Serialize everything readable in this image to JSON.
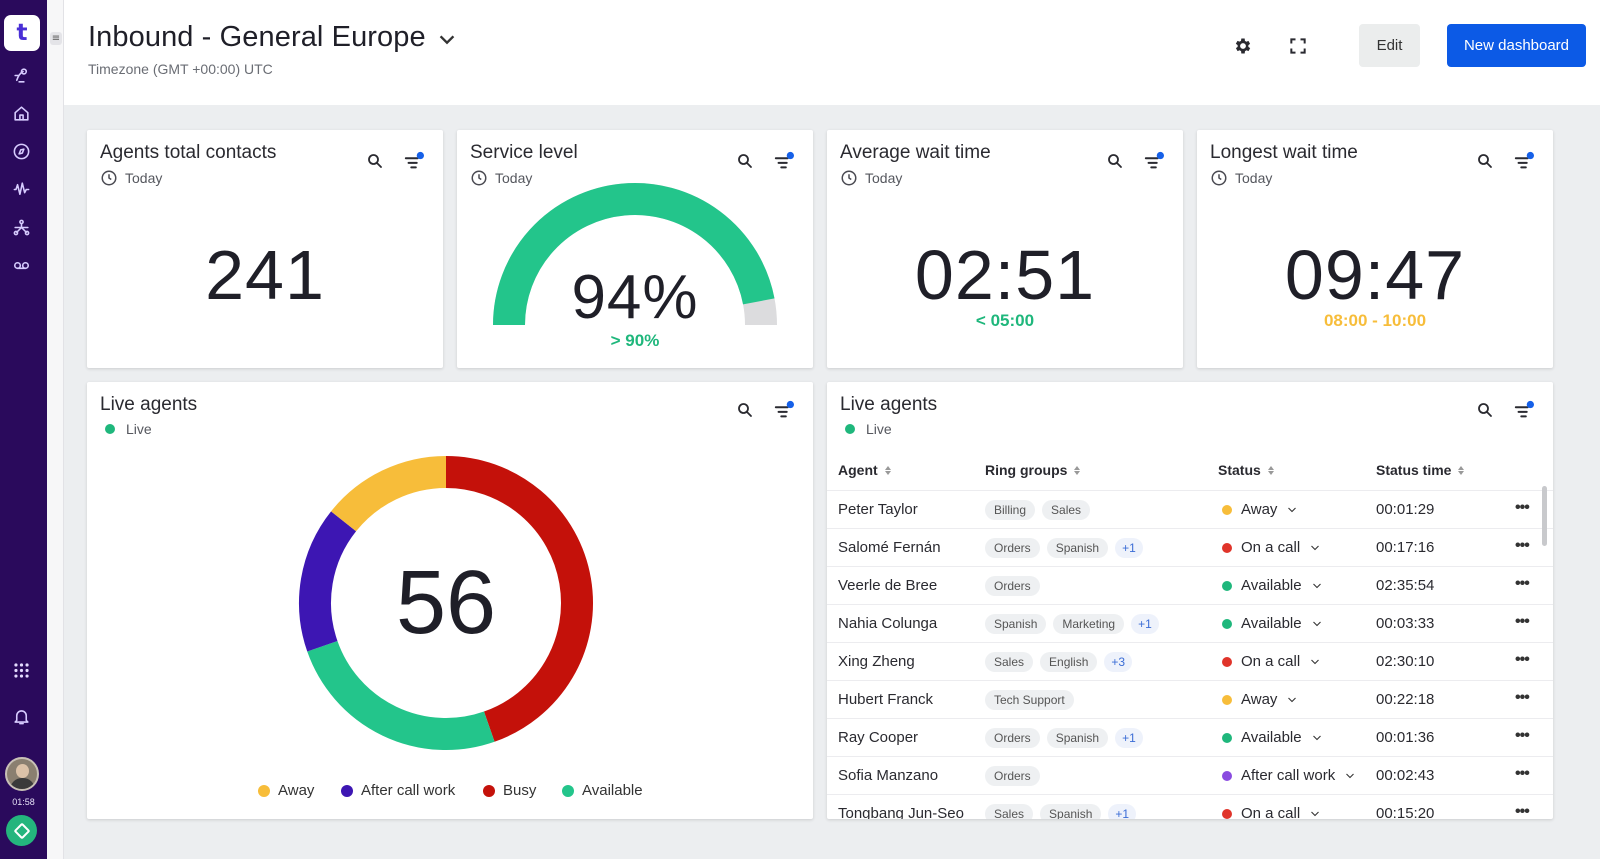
{
  "sidebar": {
    "logo": "t",
    "icons": [
      "bot-icon",
      "home-icon",
      "compass-icon",
      "waveform-icon",
      "network-icon",
      "voicemail-icon"
    ],
    "timer": "01:58"
  },
  "header": {
    "title": "Inbound - General Europe",
    "timezone": "Timezone (GMT +00:00) UTC",
    "edit_label": "Edit",
    "new_dashboard_label": "New dashboard",
    "accent_color": "#0c5ae6"
  },
  "widgets": {
    "total_contacts": {
      "title": "Agents total contacts",
      "period": "Today",
      "value": "241"
    },
    "service_level": {
      "title": "Service level",
      "period": "Today",
      "value": "94%",
      "target": "> 90%",
      "fill_fraction": 0.94,
      "color": "#23c58b"
    },
    "avg_wait": {
      "title": "Average wait time",
      "period": "Today",
      "value": "02:51",
      "target": "< 05:00",
      "target_color": "#1fb77c"
    },
    "longest_wait": {
      "title": "Longest wait time",
      "period": "Today",
      "value": "09:47",
      "target": "08:00 - 10:00",
      "target_color": "#f7bd3a"
    }
  },
  "live_agents_chart": {
    "title": "Live agents",
    "live_label": "Live",
    "total": "56",
    "legend": [
      {
        "name": "Away",
        "color": "#f7bd3a"
      },
      {
        "name": "After call work",
        "color": "#3d16b3"
      },
      {
        "name": "Busy",
        "color": "#c4110a"
      },
      {
        "name": "Available",
        "color": "#23c58b"
      }
    ]
  },
  "chart_data": {
    "type": "pie",
    "title": "Live agents",
    "categories": [
      "Busy",
      "Available",
      "After call work",
      "Away"
    ],
    "values": [
      25,
      14,
      9,
      8
    ],
    "total": 56,
    "colors": [
      "#c4110a",
      "#23c58b",
      "#3d16b3",
      "#f7bd3a"
    ]
  },
  "live_agents_table": {
    "title": "Live agents",
    "live_label": "Live",
    "columns": [
      "Agent",
      "Ring groups",
      "Status",
      "Status time"
    ],
    "status_colors": {
      "Away": "#f7bd3a",
      "On a call": "#e0342a",
      "Available": "#1fb77c",
      "After call work": "#8a4be0"
    },
    "rows": [
      {
        "agent": "Peter Taylor",
        "groups": [
          "Billing",
          "Sales"
        ],
        "more": "",
        "status": "Away",
        "time": "00:01:29"
      },
      {
        "agent": "Salomé Fernán",
        "groups": [
          "Orders",
          "Spanish"
        ],
        "more": "+1",
        "status": "On a call",
        "time": "00:17:16"
      },
      {
        "agent": "Veerle de Bree",
        "groups": [
          "Orders"
        ],
        "more": "",
        "status": "Available",
        "time": "02:35:54"
      },
      {
        "agent": "Nahia Colunga",
        "groups": [
          "Spanish",
          "Marketing"
        ],
        "more": "+1",
        "status": "Available",
        "time": "00:03:33"
      },
      {
        "agent": "Xing Zheng",
        "groups": [
          "Sales",
          "English"
        ],
        "more": "+3",
        "status": "On a call",
        "time": "02:30:10"
      },
      {
        "agent": "Hubert Franck",
        "groups": [
          "Tech Support"
        ],
        "more": "",
        "status": "Away",
        "time": "00:22:18"
      },
      {
        "agent": "Ray Cooper",
        "groups": [
          "Orders",
          "Spanish"
        ],
        "more": "+1",
        "status": "Available",
        "time": "00:01:36"
      },
      {
        "agent": "Sofia Manzano",
        "groups": [
          "Orders"
        ],
        "more": "",
        "status": "After call work",
        "time": "00:02:43"
      },
      {
        "agent": "Tongbang Jun-Seo",
        "groups": [
          "Sales",
          "Spanish"
        ],
        "more": "+1",
        "status": "On a call",
        "time": "00:15:20"
      }
    ]
  }
}
